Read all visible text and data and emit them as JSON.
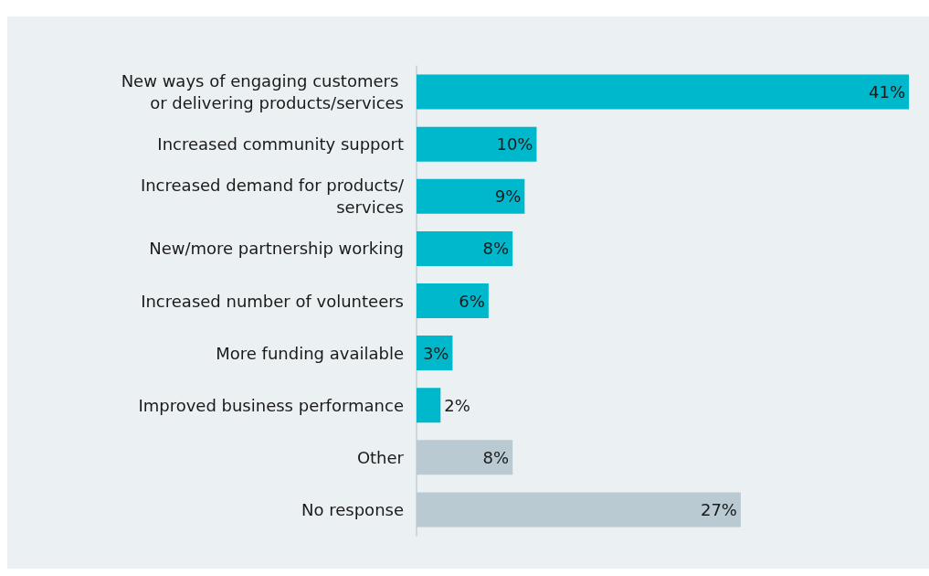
{
  "chart_data": {
    "type": "bar",
    "orientation": "horizontal",
    "categories": [
      "New ways of engaging customers or delivering products/services",
      "Increased community support",
      "Increased demand for products/services",
      "New/more partnership working",
      "Increased number of volunteers",
      "More funding available",
      "Improved business performance",
      "Other",
      "No response"
    ],
    "values": [
      41,
      10,
      9,
      8,
      6,
      3,
      2,
      8,
      27
    ],
    "value_labels": [
      "41%",
      "10%",
      "9%",
      "8%",
      "6%",
      "3%",
      "2%",
      "8%",
      "27%"
    ],
    "colors": [
      "#00b8cc",
      "#00b8cc",
      "#00b8cc",
      "#00b8cc",
      "#00b8cc",
      "#00b8cc",
      "#00b8cc",
      "#b9cad2",
      "#b9cad2"
    ]
  }
}
